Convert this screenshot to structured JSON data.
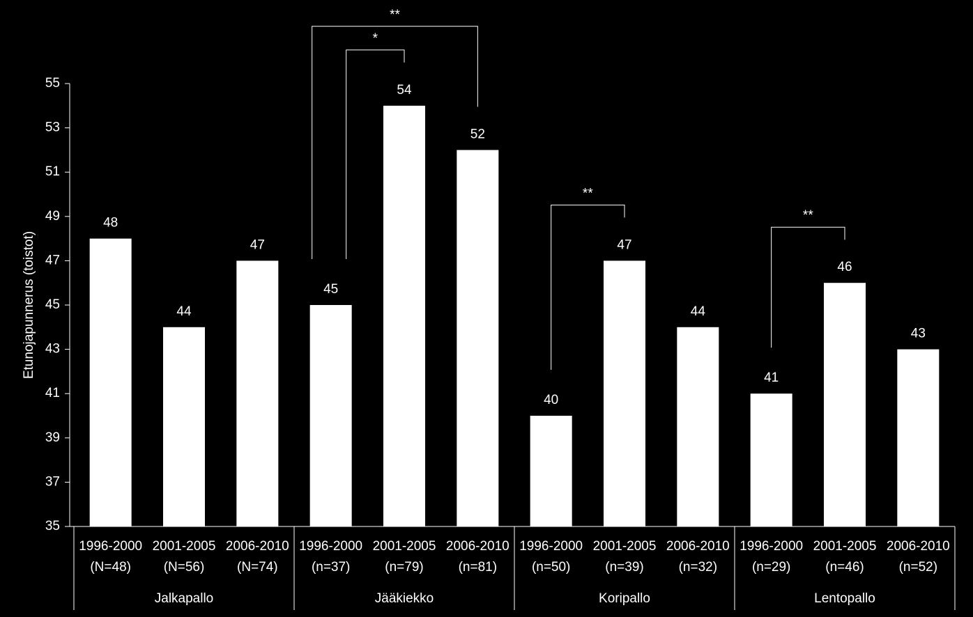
{
  "chart_data": {
    "type": "bar",
    "y_label": "Etunojapunnerus (toistot)",
    "categories": [
      "1996-2000",
      "2001-2005",
      "2006-2010",
      "1996-2000",
      "2001-2005",
      "2006-2010",
      "1996-2000",
      "2001-2005",
      "2006-2010",
      "1996-2000",
      "2001-2005",
      "2006-2010"
    ],
    "category_notes": [
      "(N=48)",
      "(N=56)",
      "(N=74)",
      "(n=37)",
      "(n=79)",
      "(n=81)",
      "(n=50)",
      "(n=39)",
      "(n=32)",
      "(n=29)",
      "(n=46)",
      "(n=52)"
    ],
    "groups": [
      "Jalkapallo",
      "Jääkiekko",
      "Koripallo",
      "Lentopallo"
    ],
    "values": [
      48,
      44,
      47,
      45,
      54,
      52,
      40,
      47,
      44,
      41,
      46,
      43
    ],
    "color": "#ffffff",
    "ylim": [
      35,
      55
    ],
    "yticks": [
      35,
      37,
      39,
      41,
      43,
      45,
      47,
      49,
      51,
      53,
      55
    ],
    "annotations": [
      {
        "label": "**",
        "from": 3,
        "to": 5
      },
      {
        "label": "*",
        "from": 3,
        "to": 4
      },
      {
        "label": "**",
        "from": 6,
        "to": 7
      },
      {
        "label": "**",
        "from": 9,
        "to": 10
      }
    ]
  }
}
